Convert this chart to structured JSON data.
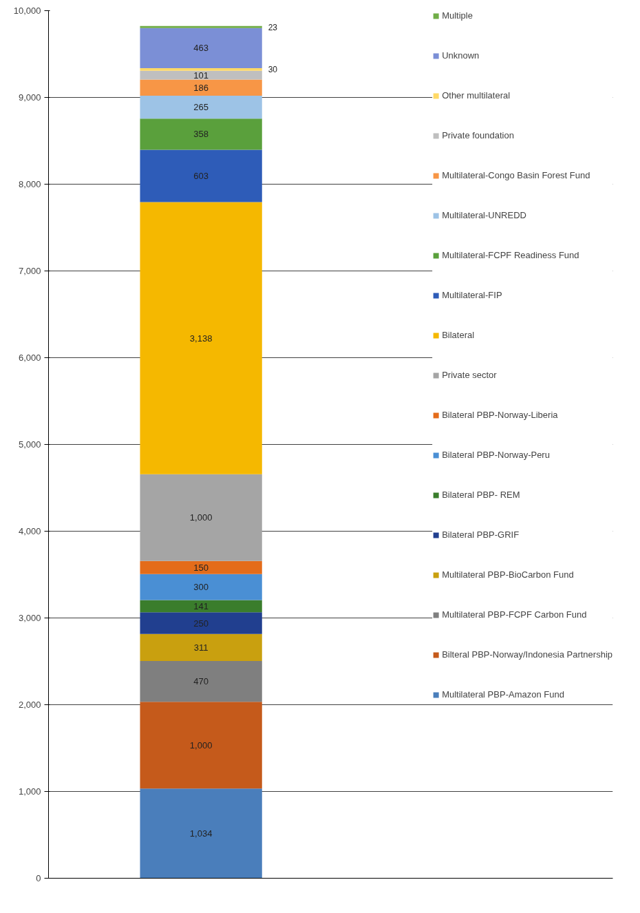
{
  "chart_data": {
    "type": "bar",
    "stacked": true,
    "categories": [
      null
    ],
    "series": [
      {
        "name": "Multilateral PBP-Amazon Fund",
        "color": "#4a7ebb",
        "values": [
          1034
        ]
      },
      {
        "name": "Bilteral PBP-Norway/Indonesia Partnership",
        "color": "#c55a1b",
        "values": [
          1000
        ]
      },
      {
        "name": "Multilateral PBP-FCPF Carbon Fund",
        "color": "#7f7f7f",
        "values": [
          470
        ]
      },
      {
        "name": "Multilateral PBP-BioCarbon Fund",
        "color": "#c9a00f",
        "values": [
          311
        ]
      },
      {
        "name": "Bilateral PBP-GRIF",
        "color": "#213f8f",
        "values": [
          250
        ]
      },
      {
        "name": "Bilateral PBP- REM",
        "color": "#3a7d2c",
        "values": [
          141
        ]
      },
      {
        "name": "Bilateral PBP-Norway-Peru",
        "color": "#4a8fd4",
        "values": [
          300
        ]
      },
      {
        "name": "Bilateral PBP-Norway-Liberia",
        "color": "#e46c1a",
        "values": [
          150
        ]
      },
      {
        "name": "Private sector",
        "color": "#a5a5a5",
        "values": [
          1000
        ]
      },
      {
        "name": "Bilateral",
        "color": "#f5b800",
        "values": [
          3138
        ]
      },
      {
        "name": "Multilateral-FIP",
        "color": "#2e5cb8",
        "values": [
          603
        ]
      },
      {
        "name": "Multilateral-FCPF Readiness Fund",
        "color": "#5aa03c",
        "values": [
          358
        ]
      },
      {
        "name": "Multilateral-UNREDD",
        "color": "#9dc3e6",
        "values": [
          265
        ]
      },
      {
        "name": "Multilateral-Congo Basin Forest Fund",
        "color": "#f79646",
        "values": [
          186
        ]
      },
      {
        "name": "Private foundation",
        "color": "#bfbfbf",
        "values": [
          101
        ]
      },
      {
        "name": "Other multilateral",
        "color": "#ffd966",
        "values": [
          30
        ]
      },
      {
        "name": "Unknown",
        "color": "#7b8fd6",
        "values": [
          463
        ]
      },
      {
        "name": "Multiple",
        "color": "#70ad47",
        "values": [
          23
        ]
      }
    ],
    "ylim": [
      0,
      10000
    ],
    "yticks": [
      0,
      {
        "value": 1000,
        "label": "1,000"
      },
      {
        "value": 2000,
        "label": "2,000"
      },
      {
        "value": 3000,
        "label": "3,000"
      },
      {
        "value": 4000,
        "label": "4,000"
      },
      {
        "value": 5000,
        "label": "5,000"
      },
      {
        "value": 6000,
        "label": "6,000"
      },
      {
        "value": 7000,
        "label": "7,000"
      },
      {
        "value": 8000,
        "label": "8,000"
      },
      {
        "value": 9000,
        "label": "9,000"
      },
      {
        "value": 10000,
        "label": "10,000"
      }
    ],
    "value_labels": [
      "1,034",
      "1,000",
      "470",
      "311",
      "250",
      "141",
      "300",
      "150",
      "1,000",
      "3,138",
      "603",
      "358",
      "265",
      "186",
      "101",
      "30",
      "463",
      "23"
    ],
    "grid": "y",
    "legend": "right"
  }
}
